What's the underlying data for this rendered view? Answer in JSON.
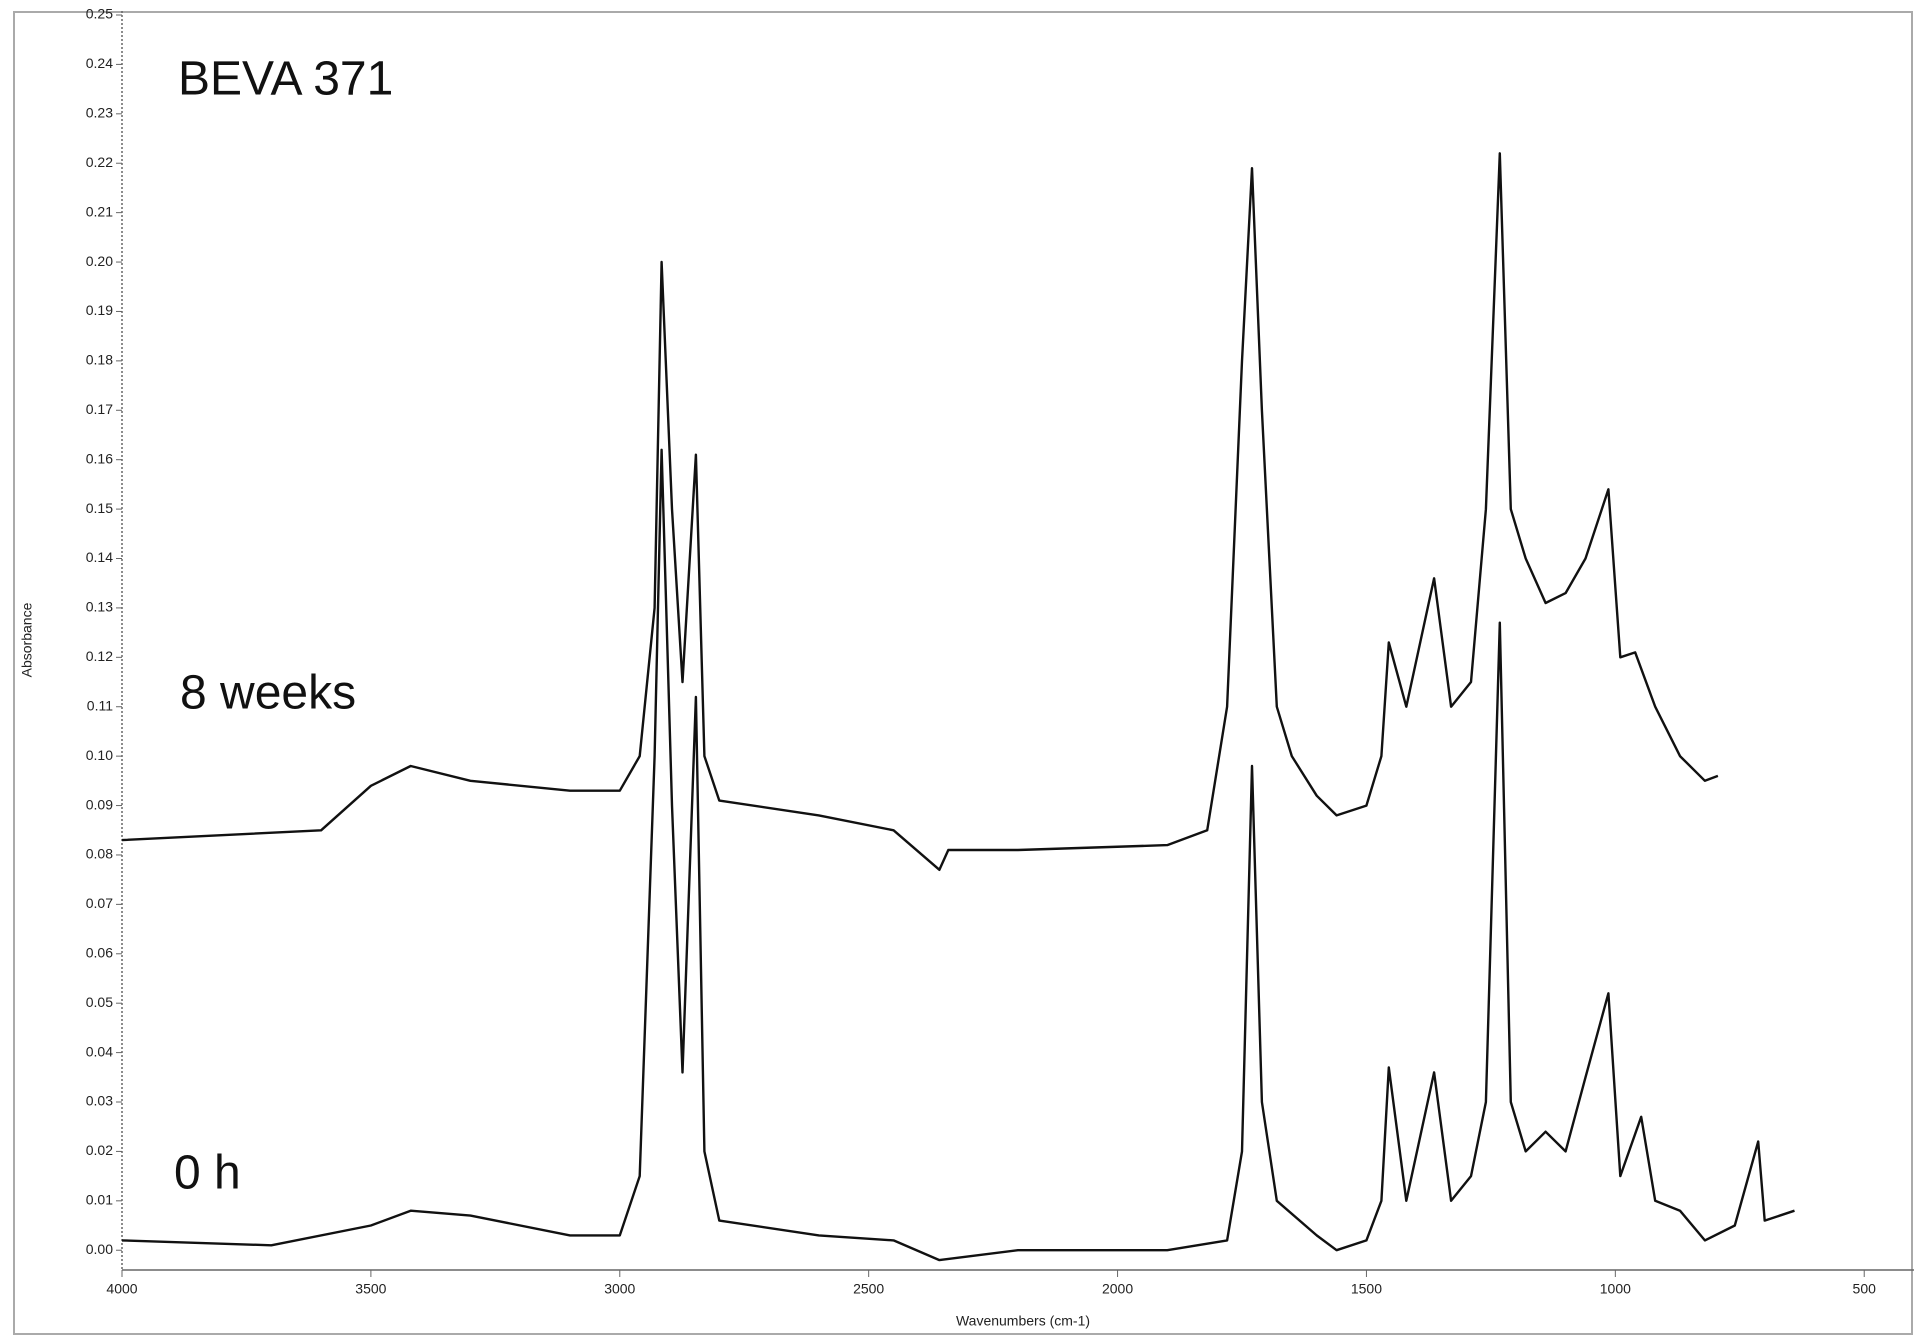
{
  "chart_data": {
    "type": "line",
    "annotations": [
      "BEVA 371",
      "8 weeks",
      "0 h"
    ],
    "xlabel": "Wavenumbers (cm-1)",
    "ylabel": "Absorbance",
    "xlim": [
      4000,
      400
    ],
    "ylim": [
      -0.004,
      0.25
    ],
    "xticks": [
      4000,
      3500,
      3000,
      2500,
      2000,
      1500,
      1000,
      500
    ],
    "yticks": [
      {
        "value": 0,
        "label": "0.00"
      },
      0.01,
      0.02,
      0.03,
      0.04,
      0.05,
      0.06,
      0.07,
      0.08,
      0.09,
      {
        "value": 0.1,
        "label": "0.10"
      },
      0.11,
      0.12,
      0.13,
      0.14,
      0.15,
      0.16,
      0.17,
      0.18,
      0.19,
      {
        "value": 0.2,
        "label": "0.20"
      },
      0.21,
      0.22,
      0.23,
      0.24,
      0.25
    ],
    "series": [
      {
        "name": "8 weeks",
        "color": "#111111",
        "x": [
          4000,
          3800,
          3600,
          3500,
          3420,
          3300,
          3100,
          3000,
          2960,
          2930,
          2916,
          2895,
          2874,
          2847,
          2830,
          2800,
          2600,
          2450,
          2358,
          2340,
          2200,
          1900,
          1820,
          1780,
          1750,
          1730,
          1710,
          1680,
          1650,
          1600,
          1560,
          1500,
          1470,
          1455,
          1420,
          1364,
          1330,
          1290,
          1260,
          1232,
          1210,
          1180,
          1140,
          1100,
          1060,
          1014,
          990,
          960,
          920,
          870,
          820,
          794
        ],
        "values": [
          0.083,
          0.084,
          0.085,
          0.094,
          0.098,
          0.095,
          0.093,
          0.093,
          0.1,
          0.13,
          0.2,
          0.15,
          0.115,
          0.161,
          0.1,
          0.091,
          0.088,
          0.085,
          0.077,
          0.081,
          0.081,
          0.082,
          0.085,
          0.11,
          0.18,
          0.219,
          0.17,
          0.11,
          0.1,
          0.092,
          0.088,
          0.09,
          0.1,
          0.123,
          0.11,
          0.136,
          0.11,
          0.115,
          0.15,
          0.222,
          0.15,
          0.14,
          0.131,
          0.133,
          0.14,
          0.154,
          0.12,
          0.121,
          0.11,
          0.1,
          0.095,
          0.096
        ]
      },
      {
        "name": "0 h",
        "color": "#111111",
        "x": [
          4000,
          3700,
          3500,
          3420,
          3300,
          3100,
          3000,
          2960,
          2930,
          2916,
          2895,
          2874,
          2847,
          2830,
          2800,
          2600,
          2450,
          2358,
          2200,
          1900,
          1780,
          1750,
          1730,
          1710,
          1680,
          1600,
          1560,
          1500,
          1470,
          1455,
          1420,
          1364,
          1330,
          1290,
          1260,
          1232,
          1210,
          1180,
          1140,
          1100,
          1060,
          1014,
          990,
          948,
          920,
          870,
          820,
          760,
          713,
          700,
          640
        ],
        "values": [
          0.002,
          0.001,
          0.005,
          0.008,
          0.007,
          0.003,
          0.003,
          0.015,
          0.1,
          0.162,
          0.09,
          0.036,
          0.112,
          0.02,
          0.006,
          0.003,
          0.002,
          -0.002,
          0,
          0,
          0.002,
          0.02,
          0.098,
          0.03,
          0.01,
          0.003,
          0,
          0.002,
          0.01,
          0.037,
          0.01,
          0.036,
          0.01,
          0.015,
          0.03,
          0.127,
          0.03,
          0.02,
          0.024,
          0.02,
          0.035,
          0.052,
          0.015,
          0.027,
          0.01,
          0.008,
          0.002,
          0.005,
          0.022,
          0.006,
          0.008
        ]
      }
    ]
  }
}
